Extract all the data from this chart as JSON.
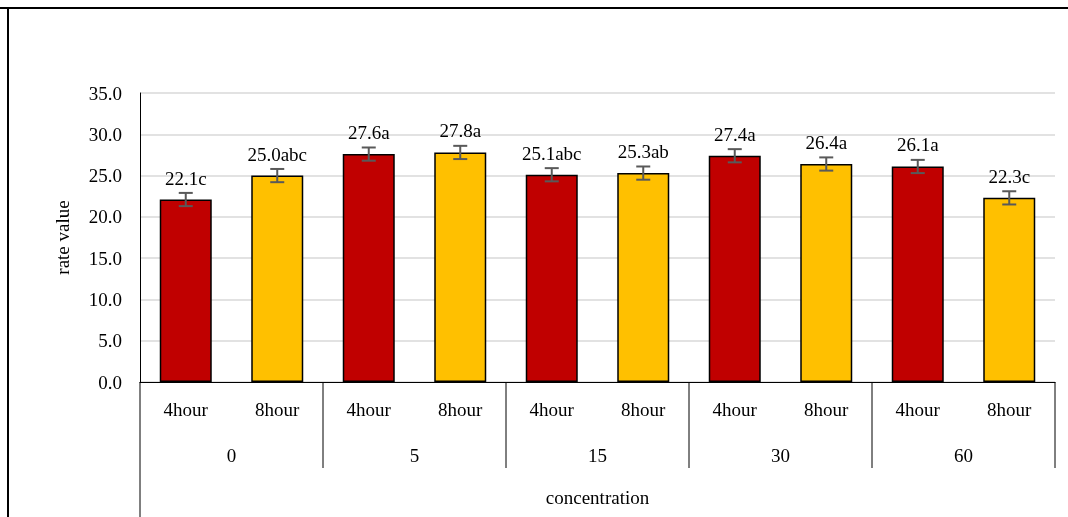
{
  "chart_data": {
    "type": "bar",
    "xlabel": "concentration",
    "ylabel": "rate value",
    "categories": [
      "4hour",
      "8hour",
      "4hour",
      "8hour",
      "4hour",
      "8hour",
      "4hour",
      "8hour",
      "4hour",
      "8hour"
    ],
    "values": [
      22.1,
      25.0,
      27.6,
      27.8,
      25.1,
      25.3,
      27.4,
      26.4,
      26.1,
      22.3
    ],
    "colors": [
      "#c00000",
      "#ffc000",
      "#c00000",
      "#ffc000",
      "#c00000",
      "#ffc000",
      "#c00000",
      "#ffc000",
      "#c00000",
      "#ffc000"
    ],
    "errors": [
      0.8,
      0.8,
      0.8,
      0.8,
      0.8,
      0.8,
      0.8,
      0.8,
      0.8,
      0.8
    ],
    "value_labels": [
      "22.1c",
      "25.0abc",
      "27.6a",
      "27.8a",
      "25.1abc",
      "25.3ab",
      "27.4a",
      "26.4a",
      "26.1a",
      "22.3c"
    ],
    "annotations": [
      "0",
      "5",
      "15",
      "30",
      "60"
    ],
    "ylim": [
      0,
      35
    ],
    "yticks": [
      {
        "value": 0,
        "label": "0.0"
      },
      {
        "value": 5,
        "label": "5.0"
      },
      {
        "value": 10,
        "label": "10.0"
      },
      {
        "value": 15,
        "label": "15.0"
      },
      {
        "value": 20,
        "label": "20.0"
      },
      {
        "value": 25,
        "label": "25.0"
      },
      {
        "value": 30,
        "label": "30.0"
      },
      {
        "value": 35,
        "label": "35.0"
      }
    ],
    "grid": "y"
  }
}
